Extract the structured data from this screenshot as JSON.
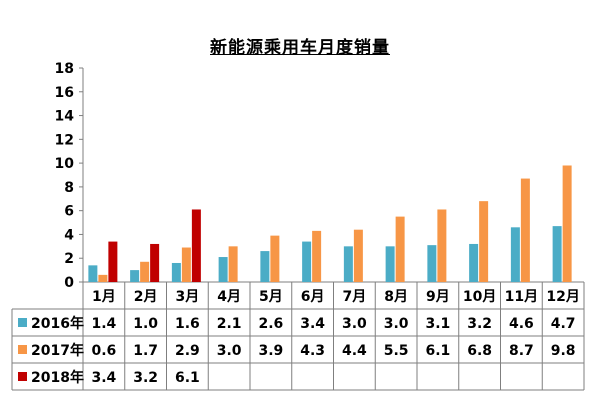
{
  "chart_data": {
    "type": "bar",
    "title": "新能源乘用车月度销量",
    "categories": [
      "1月",
      "2月",
      "3月",
      "4月",
      "5月",
      "6月",
      "7月",
      "8月",
      "9月",
      "10月",
      "11月",
      "12月"
    ],
    "ylim": [
      0,
      18
    ],
    "yticks": [
      "0",
      "2",
      "4",
      "6",
      "8",
      "10",
      "12",
      "14",
      "16",
      "18"
    ],
    "grid": false,
    "legend": "table-left",
    "series": [
      {
        "name": "2016年",
        "color": "#4bacc6",
        "values": [
          1.4,
          1.0,
          1.6,
          2.1,
          2.6,
          3.4,
          3.0,
          3.0,
          3.1,
          3.2,
          4.6,
          4.7
        ],
        "labels": [
          "1.4",
          "1.0",
          "1.6",
          "2.1",
          "2.6",
          "3.4",
          "3.0",
          "3.0",
          "3.1",
          "3.2",
          "4.6",
          "4.7"
        ]
      },
      {
        "name": "2017年",
        "color": "#f79646",
        "values": [
          0.6,
          1.7,
          2.9,
          3.0,
          3.9,
          4.3,
          4.4,
          5.5,
          6.1,
          6.8,
          8.7,
          9.8
        ],
        "labels": [
          "0.6",
          "1.7",
          "2.9",
          "3.0",
          "3.9",
          "4.3",
          "4.4",
          "5.5",
          "6.1",
          "6.8",
          "8.7",
          "9.8"
        ]
      },
      {
        "name": "2018年",
        "color": "#c00000",
        "values": [
          3.4,
          3.2,
          6.1,
          null,
          null,
          null,
          null,
          null,
          null,
          null,
          null,
          null
        ],
        "labels": [
          "3.4",
          "3.2",
          "6.1",
          "",
          "",
          "",
          "",
          "",
          "",
          "",
          "",
          ""
        ]
      }
    ]
  }
}
